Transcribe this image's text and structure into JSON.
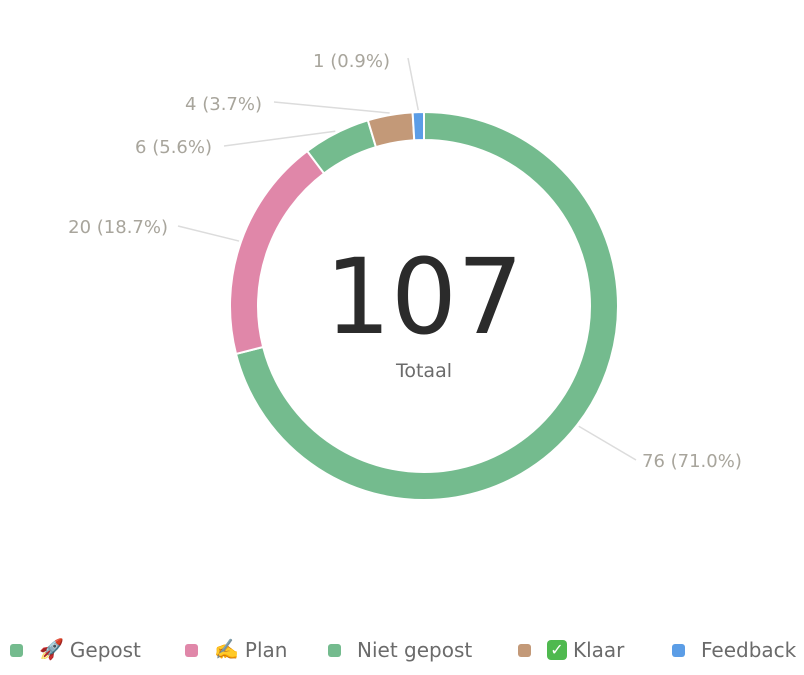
{
  "chart_data": {
    "type": "pie",
    "total": "107",
    "total_caption": "Totaal",
    "slices": [
      {
        "value": 76,
        "label": "76 (71.0%)",
        "color": "#74bb8e"
      },
      {
        "value": 20,
        "label": "20 (18.7%)",
        "color": "#e087a9"
      },
      {
        "value": 6,
        "label": "6 (5.6%)",
        "color": "#74bb8e"
      },
      {
        "value": 4,
        "label": "4 (3.7%)",
        "color": "#c39978"
      },
      {
        "value": 1,
        "label": "1 (0.9%)",
        "color": "#5b9de6"
      }
    ],
    "legend": [
      {
        "emoji": "🚀",
        "emoji_icon": "rocket-icon",
        "label": "Gepost",
        "color": "#74bb8e"
      },
      {
        "emoji": "✍️",
        "emoji_icon": "writing-hand-icon",
        "label": "Plan",
        "color": "#e087a9"
      },
      {
        "emoji": "",
        "emoji_icon": "",
        "label": "Niet gepost",
        "color": "#74bb8e"
      },
      {
        "emoji": "✓",
        "emoji_icon": "check-mark-button-icon",
        "label": "Klaar",
        "color": "#c39978"
      },
      {
        "emoji": "",
        "emoji_icon": "",
        "label": "Feedback",
        "color": "#5b9de6"
      }
    ],
    "legend_placement": "bottom"
  }
}
